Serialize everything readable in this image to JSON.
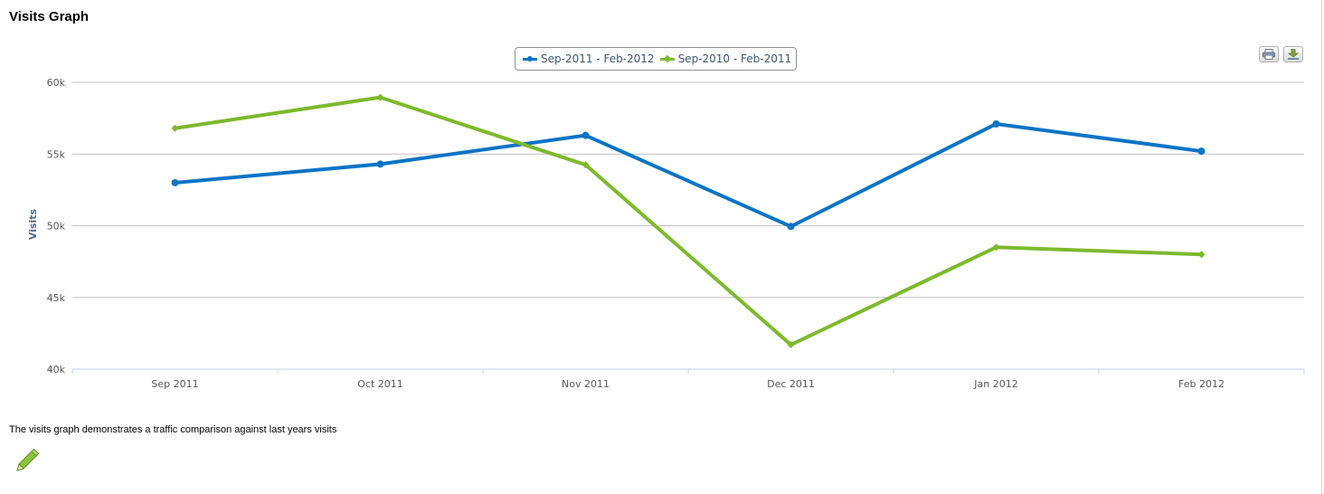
{
  "page": {
    "title": "Visits Graph",
    "caption": "The visits graph demonstrates a traffic comparison against last years visits"
  },
  "icons": {
    "print": "print-icon",
    "download": "download-icon",
    "edit": "pencil-icon"
  },
  "colors": {
    "series_current": "#0a74c5",
    "series_previous": "#7db92d",
    "grid": "#c0c0c0",
    "axis_title": "#4d6a86",
    "tick_label": "#555555"
  },
  "chart_data": {
    "type": "line",
    "title": "",
    "xlabel": "",
    "ylabel": "Visits",
    "categories": [
      "Sep 2011",
      "Oct 2011",
      "Nov 2011",
      "Dec 2011",
      "Jan 2012",
      "Feb 2012"
    ],
    "ylim": [
      40000,
      60000
    ],
    "yticks": [
      40000,
      45000,
      50000,
      55000,
      60000
    ],
    "ytick_labels": [
      "40k",
      "45k",
      "50k",
      "55k",
      "60k"
    ],
    "grid": true,
    "legend_position": "top-center",
    "series": [
      {
        "name": "Sep-2011 - Feb-2012",
        "color": "#0a74c5",
        "marker": "circle",
        "values": [
          53000,
          54300,
          56300,
          49950,
          57100,
          55200
        ]
      },
      {
        "name": "Sep-2010 - Feb-2011",
        "color": "#7db92d",
        "marker": "diamond",
        "values": [
          56800,
          58950,
          54250,
          41700,
          48500,
          48000
        ]
      }
    ]
  }
}
